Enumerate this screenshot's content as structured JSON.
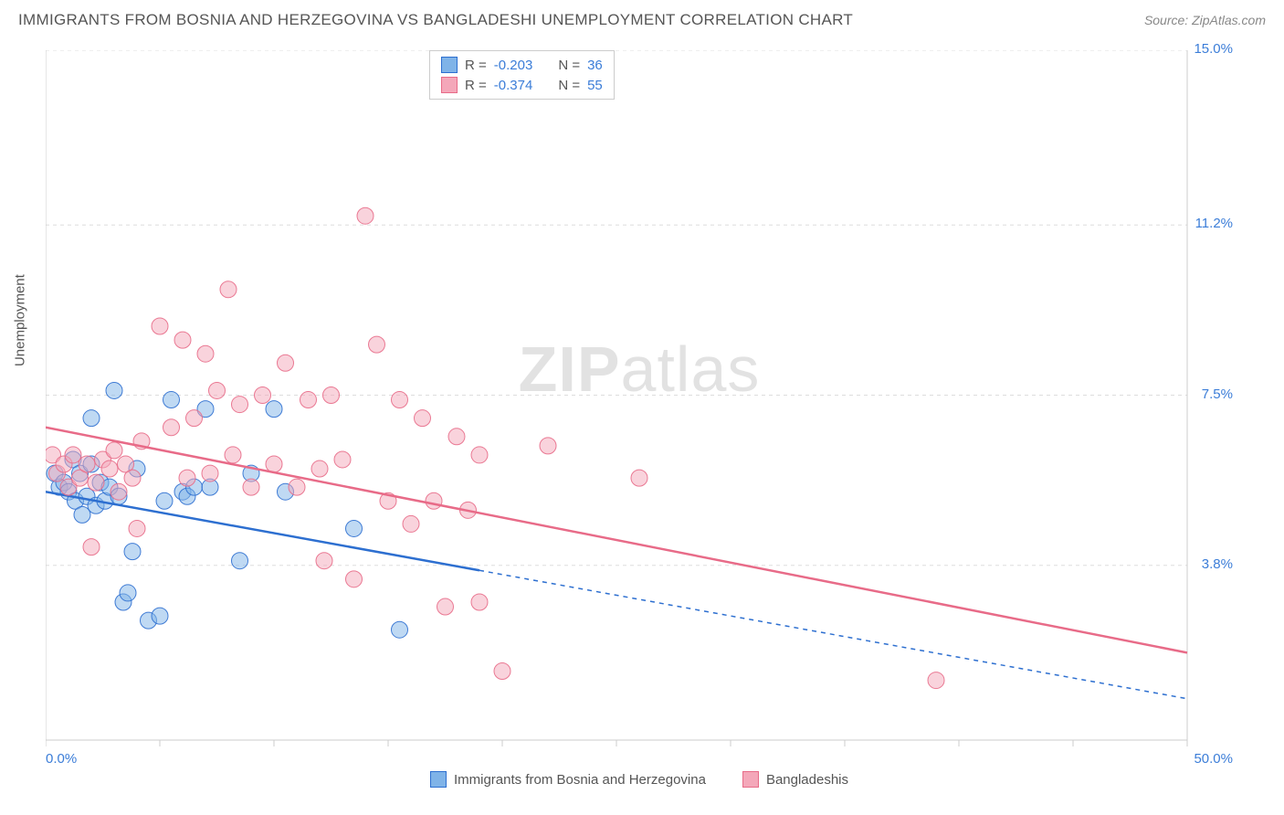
{
  "title": "IMMIGRANTS FROM BOSNIA AND HERZEGOVINA VS BANGLADESHI UNEMPLOYMENT CORRELATION CHART",
  "source": "Source: ZipAtlas.com",
  "watermark_bold": "ZIP",
  "watermark_light": "atlas",
  "chart": {
    "type": "scatter",
    "y_axis_label": "Unemployment",
    "xlim": [
      0,
      50
    ],
    "ylim": [
      0,
      15
    ],
    "x_ticks": [
      0,
      50
    ],
    "x_tick_labels": [
      "0.0%",
      "50.0%"
    ],
    "y_ticks": [
      3.8,
      7.5,
      11.2,
      15.0
    ],
    "y_tick_labels": [
      "3.8%",
      "7.5%",
      "11.2%",
      "15.0%"
    ],
    "background_color": "#ffffff",
    "grid_color": "#dddddd",
    "axis_line_color": "#cccccc",
    "axis_label_color": "#3b7dd8",
    "marker_radius": 9,
    "marker_opacity": 0.5,
    "marker_stroke_opacity": 0.9,
    "line_width": 2.5,
    "series": [
      {
        "name": "Immigrants from Bosnia and Herzegovina",
        "color": "#7fb3e8",
        "line_color": "#2d6fd0",
        "R": "-0.203",
        "N": "36",
        "regression": {
          "x1": 0,
          "y1": 5.4,
          "x2": 50,
          "y2": 0.9,
          "solid_until_x": 19
        },
        "points": [
          [
            0.4,
            5.8
          ],
          [
            0.6,
            5.5
          ],
          [
            0.8,
            5.6
          ],
          [
            1.0,
            5.4
          ],
          [
            1.2,
            6.1
          ],
          [
            1.3,
            5.2
          ],
          [
            1.5,
            5.8
          ],
          [
            1.6,
            4.9
          ],
          [
            1.8,
            5.3
          ],
          [
            2.0,
            6.0
          ],
          [
            2.0,
            7.0
          ],
          [
            2.2,
            5.1
          ],
          [
            2.4,
            5.6
          ],
          [
            2.6,
            5.2
          ],
          [
            2.8,
            5.5
          ],
          [
            3.0,
            7.6
          ],
          [
            3.2,
            5.3
          ],
          [
            3.4,
            3.0
          ],
          [
            3.6,
            3.2
          ],
          [
            3.8,
            4.1
          ],
          [
            4.0,
            5.9
          ],
          [
            4.5,
            2.6
          ],
          [
            5.0,
            2.7
          ],
          [
            5.2,
            5.2
          ],
          [
            5.5,
            7.4
          ],
          [
            6.0,
            5.4
          ],
          [
            6.2,
            5.3
          ],
          [
            6.5,
            5.5
          ],
          [
            7.0,
            7.2
          ],
          [
            7.2,
            5.5
          ],
          [
            8.5,
            3.9
          ],
          [
            9.0,
            5.8
          ],
          [
            10.0,
            7.2
          ],
          [
            10.5,
            5.4
          ],
          [
            15.5,
            2.4
          ],
          [
            13.5,
            4.6
          ]
        ]
      },
      {
        "name": "Bangladeshis",
        "color": "#f4a7b9",
        "line_color": "#e86b88",
        "R": "-0.374",
        "N": "55",
        "regression": {
          "x1": 0,
          "y1": 6.8,
          "x2": 50,
          "y2": 1.9,
          "solid_until_x": 50
        },
        "points": [
          [
            0.3,
            6.2
          ],
          [
            0.5,
            5.8
          ],
          [
            0.8,
            6.0
          ],
          [
            1.0,
            5.5
          ],
          [
            1.2,
            6.2
          ],
          [
            1.5,
            5.7
          ],
          [
            1.8,
            6.0
          ],
          [
            2.0,
            4.2
          ],
          [
            2.2,
            5.6
          ],
          [
            2.5,
            6.1
          ],
          [
            2.8,
            5.9
          ],
          [
            3.0,
            6.3
          ],
          [
            3.2,
            5.4
          ],
          [
            3.5,
            6.0
          ],
          [
            3.8,
            5.7
          ],
          [
            4.0,
            4.6
          ],
          [
            4.2,
            6.5
          ],
          [
            5.0,
            9.0
          ],
          [
            5.5,
            6.8
          ],
          [
            6.0,
            8.7
          ],
          [
            6.2,
            5.7
          ],
          [
            6.5,
            7.0
          ],
          [
            7.0,
            8.4
          ],
          [
            7.2,
            5.8
          ],
          [
            7.5,
            7.6
          ],
          [
            8.0,
            9.8
          ],
          [
            8.2,
            6.2
          ],
          [
            8.5,
            7.3
          ],
          [
            9.0,
            5.5
          ],
          [
            9.5,
            7.5
          ],
          [
            10.0,
            6.0
          ],
          [
            10.5,
            8.2
          ],
          [
            11.0,
            5.5
          ],
          [
            11.5,
            7.4
          ],
          [
            12.0,
            5.9
          ],
          [
            12.2,
            3.9
          ],
          [
            12.5,
            7.5
          ],
          [
            13.0,
            6.1
          ],
          [
            13.5,
            3.5
          ],
          [
            14.0,
            11.4
          ],
          [
            14.5,
            8.6
          ],
          [
            15.0,
            5.2
          ],
          [
            15.5,
            7.4
          ],
          [
            16.0,
            4.7
          ],
          [
            16.5,
            7.0
          ],
          [
            17.0,
            5.2
          ],
          [
            17.5,
            2.9
          ],
          [
            18.0,
            6.6
          ],
          [
            18.5,
            5.0
          ],
          [
            19.0,
            3.0
          ],
          [
            20.0,
            1.5
          ],
          [
            22.0,
            6.4
          ],
          [
            26.0,
            5.7
          ],
          [
            39.0,
            1.3
          ],
          [
            19.0,
            6.2
          ]
        ]
      }
    ],
    "corr_legend": {
      "R_label": "R =",
      "N_label": "N ="
    }
  }
}
